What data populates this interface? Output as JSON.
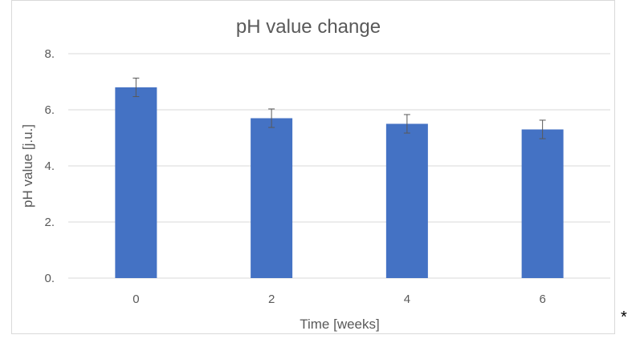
{
  "chart_data": {
    "type": "bar",
    "title": "pH value change",
    "xlabel": "Time [weeks]",
    "ylabel": "pH value [j.u.]",
    "categories": [
      "0",
      "2",
      "4",
      "6"
    ],
    "values": [
      6.8,
      5.7,
      5.5,
      5.3
    ],
    "error": [
      0.33,
      0.33,
      0.33,
      0.33
    ],
    "ylim": [
      0,
      8
    ],
    "yticks": [
      0,
      2,
      4,
      6,
      8
    ],
    "ytick_labels": [
      "0.",
      "2.",
      "4.",
      "6.",
      "8."
    ],
    "grid": true,
    "bar_color": "#4472c4",
    "gridline_color": "#d9d9d9",
    "errorbar_color": "#595959",
    "text_color": "#595959"
  },
  "footnote": "*"
}
